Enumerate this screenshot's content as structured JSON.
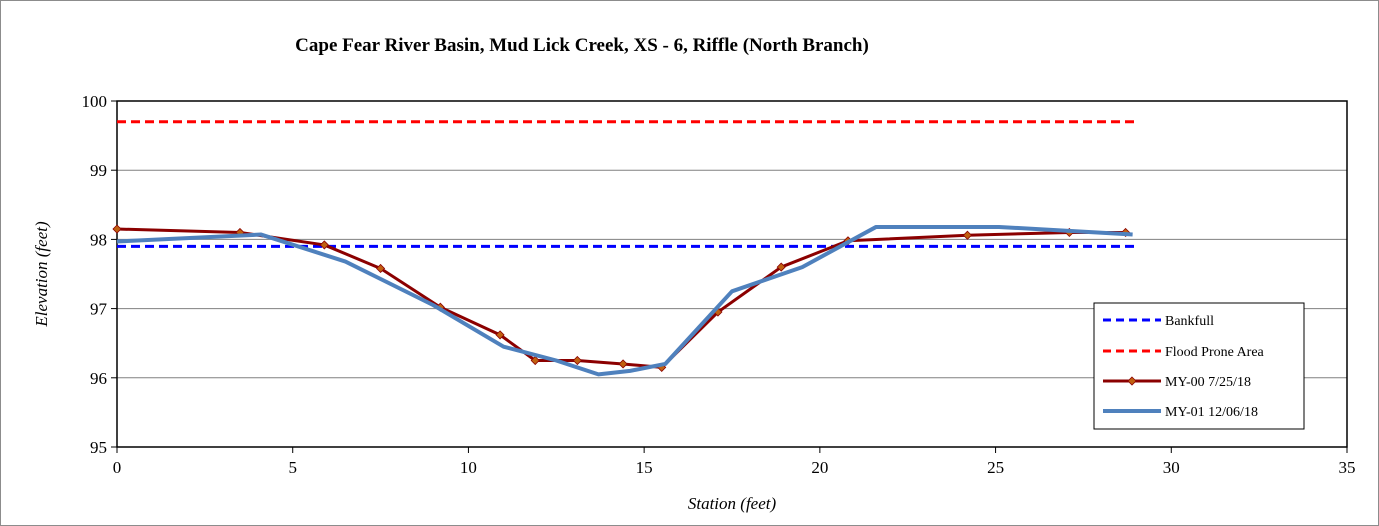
{
  "chart_data": {
    "type": "line",
    "title": "Cape Fear River Basin, Mud Lick Creek, XS - 6, Riffle (North Branch)",
    "xlabel": "Station (feet)",
    "ylabel": "Elevation (feet)",
    "xlim": [
      0,
      35
    ],
    "ylim": [
      95,
      100
    ],
    "xticks": [
      0,
      5,
      10,
      15,
      20,
      25,
      30,
      35
    ],
    "yticks": [
      95,
      96,
      97,
      98,
      99,
      100
    ],
    "grid": "horizontal",
    "legend": "right",
    "series": [
      {
        "name": "Bankfull",
        "color": "#0000ff",
        "dashed": true,
        "markers": false,
        "points": [
          [
            0,
            97.9
          ],
          [
            29,
            97.9
          ]
        ]
      },
      {
        "name": "Flood Prone Area",
        "color": "#ff0000",
        "dashed": true,
        "markers": false,
        "points": [
          [
            0,
            99.7
          ],
          [
            29,
            99.7
          ]
        ]
      },
      {
        "name": "MY-00 7/25/18",
        "color": "#8b0000",
        "marker_color": "#c06010",
        "dashed": false,
        "markers": true,
        "points": [
          [
            0,
            98.15
          ],
          [
            3.5,
            98.1
          ],
          [
            5.9,
            97.92
          ],
          [
            7.5,
            97.58
          ],
          [
            9.2,
            97.02
          ],
          [
            10.9,
            96.62
          ],
          [
            11.9,
            96.25
          ],
          [
            13.1,
            96.25
          ],
          [
            14.4,
            96.2
          ],
          [
            15.5,
            96.15
          ],
          [
            17.1,
            96.95
          ],
          [
            18.9,
            97.6
          ],
          [
            20.8,
            97.98
          ],
          [
            24.2,
            98.06
          ],
          [
            27.1,
            98.1
          ],
          [
            28.7,
            98.1
          ]
        ]
      },
      {
        "name": "MY-01 12/06/18",
        "color": "#4f81bd",
        "dashed": false,
        "markers": false,
        "points": [
          [
            0,
            97.97
          ],
          [
            4.1,
            98.07
          ],
          [
            6.5,
            97.68
          ],
          [
            9.0,
            97.05
          ],
          [
            11.0,
            96.45
          ],
          [
            12.5,
            96.25
          ],
          [
            13.7,
            96.05
          ],
          [
            14.6,
            96.1
          ],
          [
            15.6,
            96.2
          ],
          [
            17.5,
            97.25
          ],
          [
            19.5,
            97.6
          ],
          [
            21.6,
            98.18
          ],
          [
            25.1,
            98.18
          ],
          [
            28.9,
            98.07
          ]
        ]
      }
    ]
  }
}
